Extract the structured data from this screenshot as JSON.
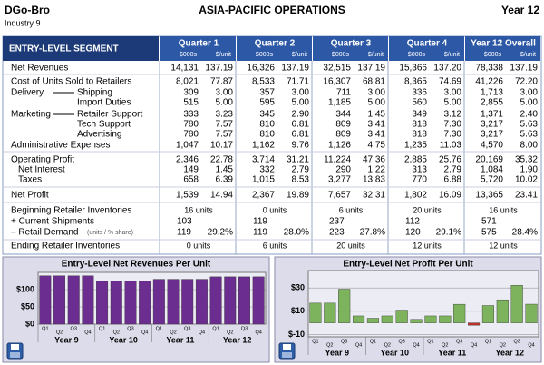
{
  "header": {
    "company": "DGo-Bro",
    "industry": "Industry 9",
    "title": "ASIA-PACIFIC  OPERATIONS",
    "year": "Year 12"
  },
  "table": {
    "segment_label": "ENTRY-LEVEL SEGMENT",
    "columns": [
      {
        "name": "Quarter 1",
        "units": [
          "$000s",
          "$/unit"
        ]
      },
      {
        "name": "Quarter 2",
        "units": [
          "$000s",
          "$/unit"
        ]
      },
      {
        "name": "Quarter 3",
        "units": [
          "$000s",
          "$/unit"
        ]
      },
      {
        "name": "Quarter 4",
        "units": [
          "$000s",
          "$/unit"
        ]
      },
      {
        "name": "Year 12 Overall",
        "units": [
          "$000s",
          "$/unit"
        ]
      }
    ],
    "rows": [
      {
        "label": "Net Revenues",
        "cells": [
          "14,131",
          "137.19",
          "16,326",
          "137.19",
          "32,515",
          "137.19",
          "15,366",
          "137.20",
          "78,338",
          "137.19"
        ]
      },
      {
        "label": "Cost of Units Sold to Retailers",
        "cells": [
          "8,021",
          "77.87",
          "8,533",
          "71.71",
          "16,307",
          "68.81",
          "8,365",
          "74.69",
          "41,226",
          "72.20"
        ]
      },
      {
        "group": "Delivery",
        "label": "Shipping",
        "cells": [
          "309",
          "3.00",
          "357",
          "3.00",
          "711",
          "3.00",
          "336",
          "3.00",
          "1,713",
          "3.00"
        ]
      },
      {
        "label": "Import Duties",
        "cells": [
          "515",
          "5.00",
          "595",
          "5.00",
          "1,185",
          "5.00",
          "560",
          "5.00",
          "2,855",
          "5.00"
        ]
      },
      {
        "group": "Marketing",
        "label": "Retailer Support",
        "cells": [
          "333",
          "3.23",
          "345",
          "2.90",
          "344",
          "1.45",
          "349",
          "3.12",
          "1,371",
          "2.40"
        ]
      },
      {
        "label": "Tech Support",
        "cells": [
          "780",
          "7.57",
          "810",
          "6.81",
          "809",
          "3.41",
          "818",
          "7.30",
          "3,217",
          "5.63"
        ]
      },
      {
        "label": "Advertising",
        "cells": [
          "780",
          "7.57",
          "810",
          "6.81",
          "809",
          "3.41",
          "818",
          "7.30",
          "3,217",
          "5.63"
        ]
      },
      {
        "label": "Administrative Expenses",
        "cells": [
          "1,047",
          "10.17",
          "1,162",
          "9.76",
          "1,126",
          "4.75",
          "1,235",
          "11.03",
          "4,570",
          "8.00"
        ]
      },
      {
        "label": "Operating Profit",
        "cells": [
          "2,346",
          "22.78",
          "3,714",
          "31.21",
          "11,224",
          "47.36",
          "2,885",
          "25.76",
          "20,169",
          "35.32"
        ]
      },
      {
        "label": "Net Interest",
        "cells": [
          "149",
          "1.45",
          "332",
          "2.79",
          "290",
          "1.22",
          "313",
          "2.79",
          "1,084",
          "1.90"
        ]
      },
      {
        "label": "Taxes",
        "cells": [
          "658",
          "6.39",
          "1,015",
          "8.53",
          "3,277",
          "13.83",
          "770",
          "6.88",
          "5,720",
          "10.02"
        ]
      },
      {
        "label": "Net Profit",
        "cells": [
          "1,539",
          "14.94",
          "2,367",
          "19.89",
          "7,657",
          "32.31",
          "1,802",
          "16.09",
          "13,365",
          "23.41"
        ]
      },
      {
        "label": "Beginning Retailer Inventories",
        "cells": [
          "16 units",
          "0 units",
          "6 units",
          "20 units",
          "16 units"
        ]
      },
      {
        "label": "+ Current Shipments",
        "cells": [
          "103",
          "119",
          "237",
          "112",
          "571"
        ]
      },
      {
        "label": "– Retail Demand",
        "note": "(units / % share)",
        "cells": [
          "119",
          "29.2%",
          "119",
          "28.0%",
          "223",
          "27.8%",
          "120",
          "29.1%",
          "575",
          "28.4%"
        ]
      },
      {
        "label": "Ending Retailer Inventories",
        "cells": [
          "0 units",
          "6 units",
          "20 units",
          "12 units",
          "12 units"
        ]
      }
    ]
  },
  "chart_data": [
    {
      "type": "bar",
      "title": "Entry-Level Net Revenues Per Unit",
      "categories": [
        "Q1",
        "Q2",
        "Q3",
        "Q4",
        "Q1",
        "Q2",
        "Q3",
        "Q4",
        "Q1",
        "Q2",
        "Q3",
        "Q4",
        "Q1",
        "Q2",
        "Q3",
        "Q4"
      ],
      "groups": [
        "Year 9",
        "Year 10",
        "Year 11",
        "Year 12"
      ],
      "values": [
        140,
        140,
        140,
        140,
        125,
        125,
        125,
        125,
        130,
        130,
        130,
        130,
        137.19,
        137.19,
        137.19,
        137.2
      ],
      "color": "#6b2d8f",
      "ylim": [
        0,
        150
      ],
      "yticks": [
        {
          "value": 0,
          "label": "$0"
        },
        {
          "value": 50,
          "label": "$50"
        },
        {
          "value": 100,
          "label": "$100"
        }
      ],
      "grid": true
    },
    {
      "type": "bar",
      "title": "Entry-Level Net Profit Per Unit",
      "categories": [
        "Q1",
        "Q2",
        "Q3",
        "Q4",
        "Q1",
        "Q2",
        "Q3",
        "Q4",
        "Q1",
        "Q2",
        "Q3",
        "Q4",
        "Q1",
        "Q2",
        "Q3",
        "Q4"
      ],
      "groups": [
        "Year 9",
        "Year 10",
        "Year 11",
        "Year 12"
      ],
      "values": [
        17,
        17,
        29,
        6,
        4,
        6,
        11,
        3,
        6,
        6,
        16,
        -2,
        14.94,
        19.89,
        32.31,
        16.09
      ],
      "color": "#7db35c",
      "negative_color": "#c0302a",
      "ylim": [
        -12,
        45
      ],
      "yticks": [
        {
          "value": -10,
          "label": "$-10"
        },
        {
          "value": 10,
          "label": "$10"
        },
        {
          "value": 30,
          "label": "$30"
        }
      ],
      "grid": true
    }
  ]
}
